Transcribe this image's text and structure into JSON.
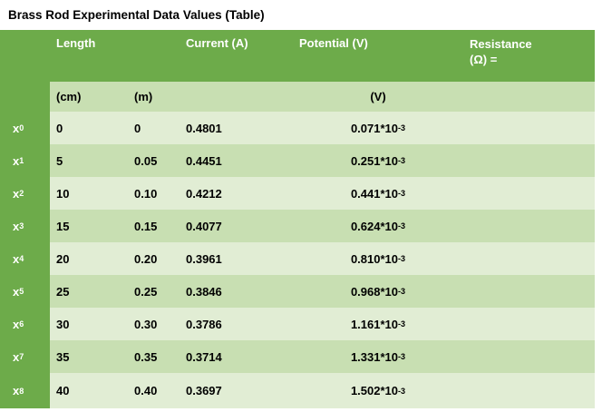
{
  "title": "Brass Rod Experimental Data Values (Table)",
  "colors": {
    "header_green": "#6dab4a",
    "band_light": "#e1edd4",
    "band_dark": "#c8dfb2",
    "header_text": "#ffffff",
    "body_text": "#000000"
  },
  "table": {
    "header": {
      "length": "Length",
      "current": "Current (A)",
      "potential": "Potential (V)",
      "resistance_line1": "Resistance",
      "resistance_line2": "(Ω)  =",
      "unit_cm": "(cm)",
      "unit_m": "(m)",
      "unit_v": "(V)"
    },
    "rows": [
      {
        "label_base": "x",
        "label_sub": "0",
        "length_cm": "0",
        "length_m": "0",
        "current_a": "0.4801",
        "potential_base": "0.071*10",
        "potential_exp": "-3"
      },
      {
        "label_base": "x",
        "label_sub": "1",
        "length_cm": "5",
        "length_m": "0.05",
        "current_a": "0.4451",
        "potential_base": "0.251*10",
        "potential_exp": "-3"
      },
      {
        "label_base": "x",
        "label_sub": "2",
        "length_cm": "10",
        "length_m": "0.10",
        "current_a": "0.4212",
        "potential_base": "0.441*10",
        "potential_exp": "-3"
      },
      {
        "label_base": "x",
        "label_sub": "3",
        "length_cm": "15",
        "length_m": "0.15",
        "current_a": "0.4077",
        "potential_base": "0.624*10",
        "potential_exp": "-3"
      },
      {
        "label_base": "x",
        "label_sub": "4",
        "length_cm": "20",
        "length_m": "0.20",
        "current_a": "0.3961",
        "potential_base": "0.810*10",
        "potential_exp": "-3"
      },
      {
        "label_base": "x",
        "label_sub": "5",
        "length_cm": "25",
        "length_m": "0.25",
        "current_a": "0.3846",
        "potential_base": "0.968*10",
        "potential_exp": "-3"
      },
      {
        "label_base": "x",
        "label_sub": "6",
        "length_cm": "30",
        "length_m": "0.30",
        "current_a": "0.3786",
        "potential_base": "1.161*10",
        "potential_exp": "-3"
      },
      {
        "label_base": "x",
        "label_sub": "7",
        "length_cm": "35",
        "length_m": "0.35",
        "current_a": "0.3714",
        "potential_base": "1.331*10",
        "potential_exp": "-3"
      },
      {
        "label_base": "x",
        "label_sub": "8",
        "length_cm": "40",
        "length_m": "0.40",
        "current_a": "0.3697",
        "potential_base": "1.502*10",
        "potential_exp": "-3"
      }
    ]
  }
}
